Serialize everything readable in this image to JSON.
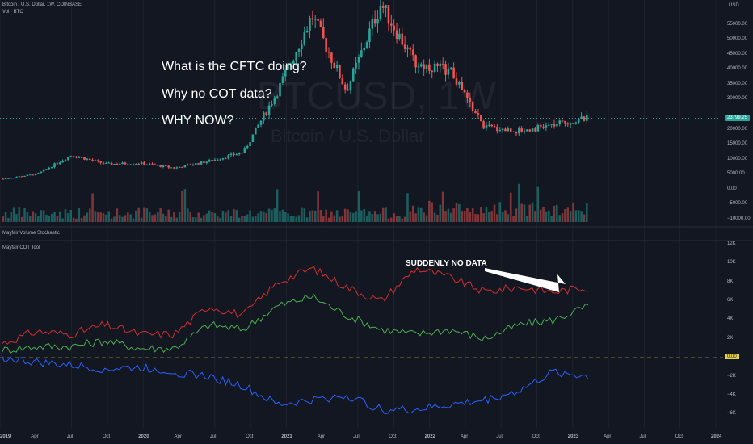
{
  "header": {
    "symbol_line": "Bitcoin / U.S. Dollar, 1W, COINBASE",
    "vol_label": "Vol · BTC",
    "currency": "USD"
  },
  "watermark": {
    "ticker": "BTCUSD, 1W",
    "name": "Bitcoin / U.S. Dollar"
  },
  "annotations": {
    "line1": "What is the CFTC doing?",
    "line2": "Why no COT data?",
    "line3": "WHY NOW?",
    "arrow_text": "SUDDENLY NO DATA"
  },
  "price_tag": "23799.25",
  "indicators": {
    "stochastic": "Mayfair Volume Stochastic",
    "cot": "Mayfair COT Tool"
  },
  "price_axis": [
    "55000.00",
    "50000.00",
    "45000.00",
    "40000.00",
    "35000.00",
    "30000.00",
    "20000.00",
    "15000.00",
    "10000.00",
    "5000.00",
    "0.00",
    "−5000.00",
    "−10000.00"
  ],
  "cot_axis": [
    "12K",
    "10K",
    "8K",
    "6K",
    "4K",
    "2K",
    "−2K",
    "−4K",
    "−6K"
  ],
  "zero_tag": "0.00",
  "time_axis": [
    "2019",
    "Apr",
    "Jul",
    "Oct",
    "2020",
    "Apr",
    "Jul",
    "Oct",
    "2021",
    "Apr",
    "Jul",
    "Oct",
    "2022",
    "Apr",
    "Jul",
    "Oct",
    "2023",
    "Apr",
    "Jul",
    "Oct",
    "2024"
  ],
  "colors": {
    "background": "#131722",
    "up": "#26a69a",
    "down": "#ef5350",
    "cot_red": "#d32f2f",
    "cot_green": "#4caf50",
    "cot_blue": "#2962ff",
    "zero_line": "#e6d34a",
    "price_line": "#26a69a"
  },
  "chart_data": {
    "type": "line",
    "title": "Bitcoin / U.S. Dollar, 1W, COINBASE",
    "price_series": {
      "x": [
        "2019-01",
        "2019-04",
        "2019-07",
        "2019-10",
        "2020-01",
        "2020-04",
        "2020-07",
        "2020-10",
        "2021-01",
        "2021-04",
        "2021-07",
        "2021-10",
        "2022-01",
        "2022-04",
        "2022-07",
        "2022-10",
        "2023-01",
        "2023-02"
      ],
      "values": [
        3600,
        5200,
        11500,
        8500,
        8800,
        7200,
        9500,
        12500,
        33000,
        58000,
        33000,
        62000,
        42000,
        40000,
        21000,
        19500,
        21500,
        23799
      ]
    },
    "cot_series": [
      {
        "name": "",
        "color": "red",
        "values": [
          1.5,
          2.8,
          2.5,
          3.5,
          2.5,
          2.5,
          5.5,
          4.5,
          8.0,
          9.5,
          7.5,
          6.0,
          9.5,
          8.5,
          7.0,
          7.5,
          7.0,
          7.5
        ]
      },
      {
        "name": "",
        "color": "green",
        "values": [
          0.8,
          1.2,
          1.2,
          1.8,
          1.0,
          1.0,
          3.5,
          3.0,
          5.5,
          6.5,
          4.5,
          3.0,
          2.5,
          3.0,
          2.0,
          3.5,
          4.0,
          5.5
        ]
      },
      {
        "name": "",
        "color": "blue",
        "values": [
          0.0,
          -0.5,
          -0.8,
          -1.2,
          -1.0,
          -1.5,
          -2.0,
          -3.0,
          -5.0,
          -4.5,
          -4.0,
          -5.5,
          -5.5,
          -5.0,
          -4.5,
          -3.5,
          -1.5,
          -2.0
        ]
      }
    ],
    "ylim_cot": [
      -7000,
      12000
    ],
    "ylim_price": [
      -10000,
      60000
    ]
  }
}
